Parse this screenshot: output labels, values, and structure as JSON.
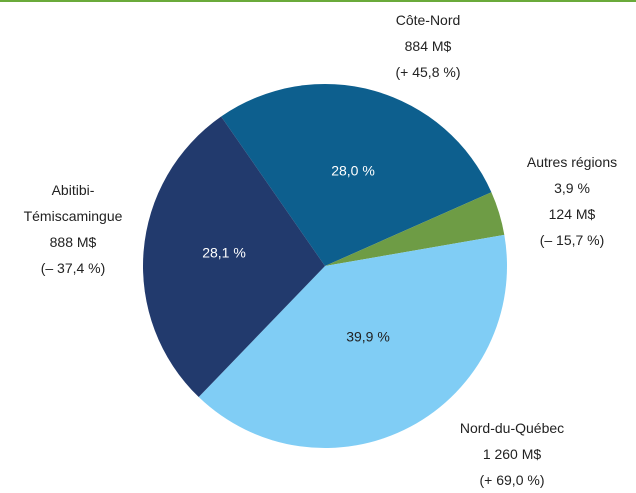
{
  "chart_data": {
    "type": "pie",
    "categories": [
      "Côte-Nord",
      "Autres régions",
      "Nord-du-Québec",
      "Abitibi-Témiscamingue"
    ],
    "values": [
      28.0,
      3.9,
      39.9,
      28.1
    ],
    "value_labels": [
      "28,0 %",
      "3,9 %",
      "39,9 %",
      "28,1 %"
    ],
    "amounts": [
      "884 M$",
      "124 M$",
      "1 260 M$",
      "888 M$"
    ],
    "changes": [
      "(+ 45,8 %)",
      "(– 15,7 %)",
      "(+ 69,0 %)",
      "(– 37,4 %)"
    ],
    "colors": [
      "#0d5f8e",
      "#6e9c45",
      "#80cdf5",
      "#223a6d"
    ]
  }
}
